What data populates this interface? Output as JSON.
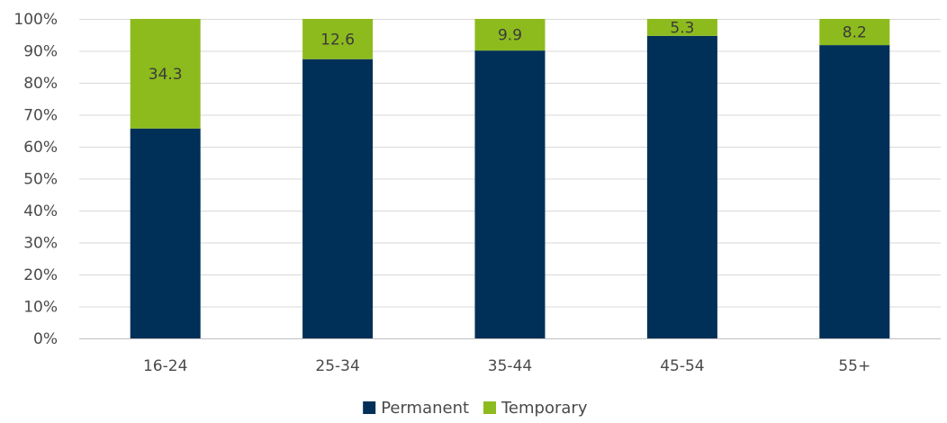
{
  "chart_data": {
    "type": "bar",
    "stacked": true,
    "categories": [
      "16-24",
      "25-34",
      "35-44",
      "45-54",
      "55+"
    ],
    "series": [
      {
        "name": "Permanent",
        "color": "#003057",
        "values": [
          65.7,
          87.4,
          90.1,
          94.7,
          91.8
        ]
      },
      {
        "name": "Temporary",
        "color": "#8dbb1e",
        "values": [
          34.3,
          12.6,
          9.9,
          5.3,
          8.2
        ]
      }
    ],
    "data_labels": {
      "Temporary": [
        "34.3",
        "12.6",
        "9.9",
        "5.3",
        "8.2"
      ]
    },
    "y_ticks": [
      "0%",
      "10%",
      "20%",
      "30%",
      "40%",
      "50%",
      "60%",
      "70%",
      "80%",
      "90%",
      "100%"
    ],
    "ylim": [
      0,
      100
    ],
    "grid": true,
    "legend_position": "bottom"
  }
}
